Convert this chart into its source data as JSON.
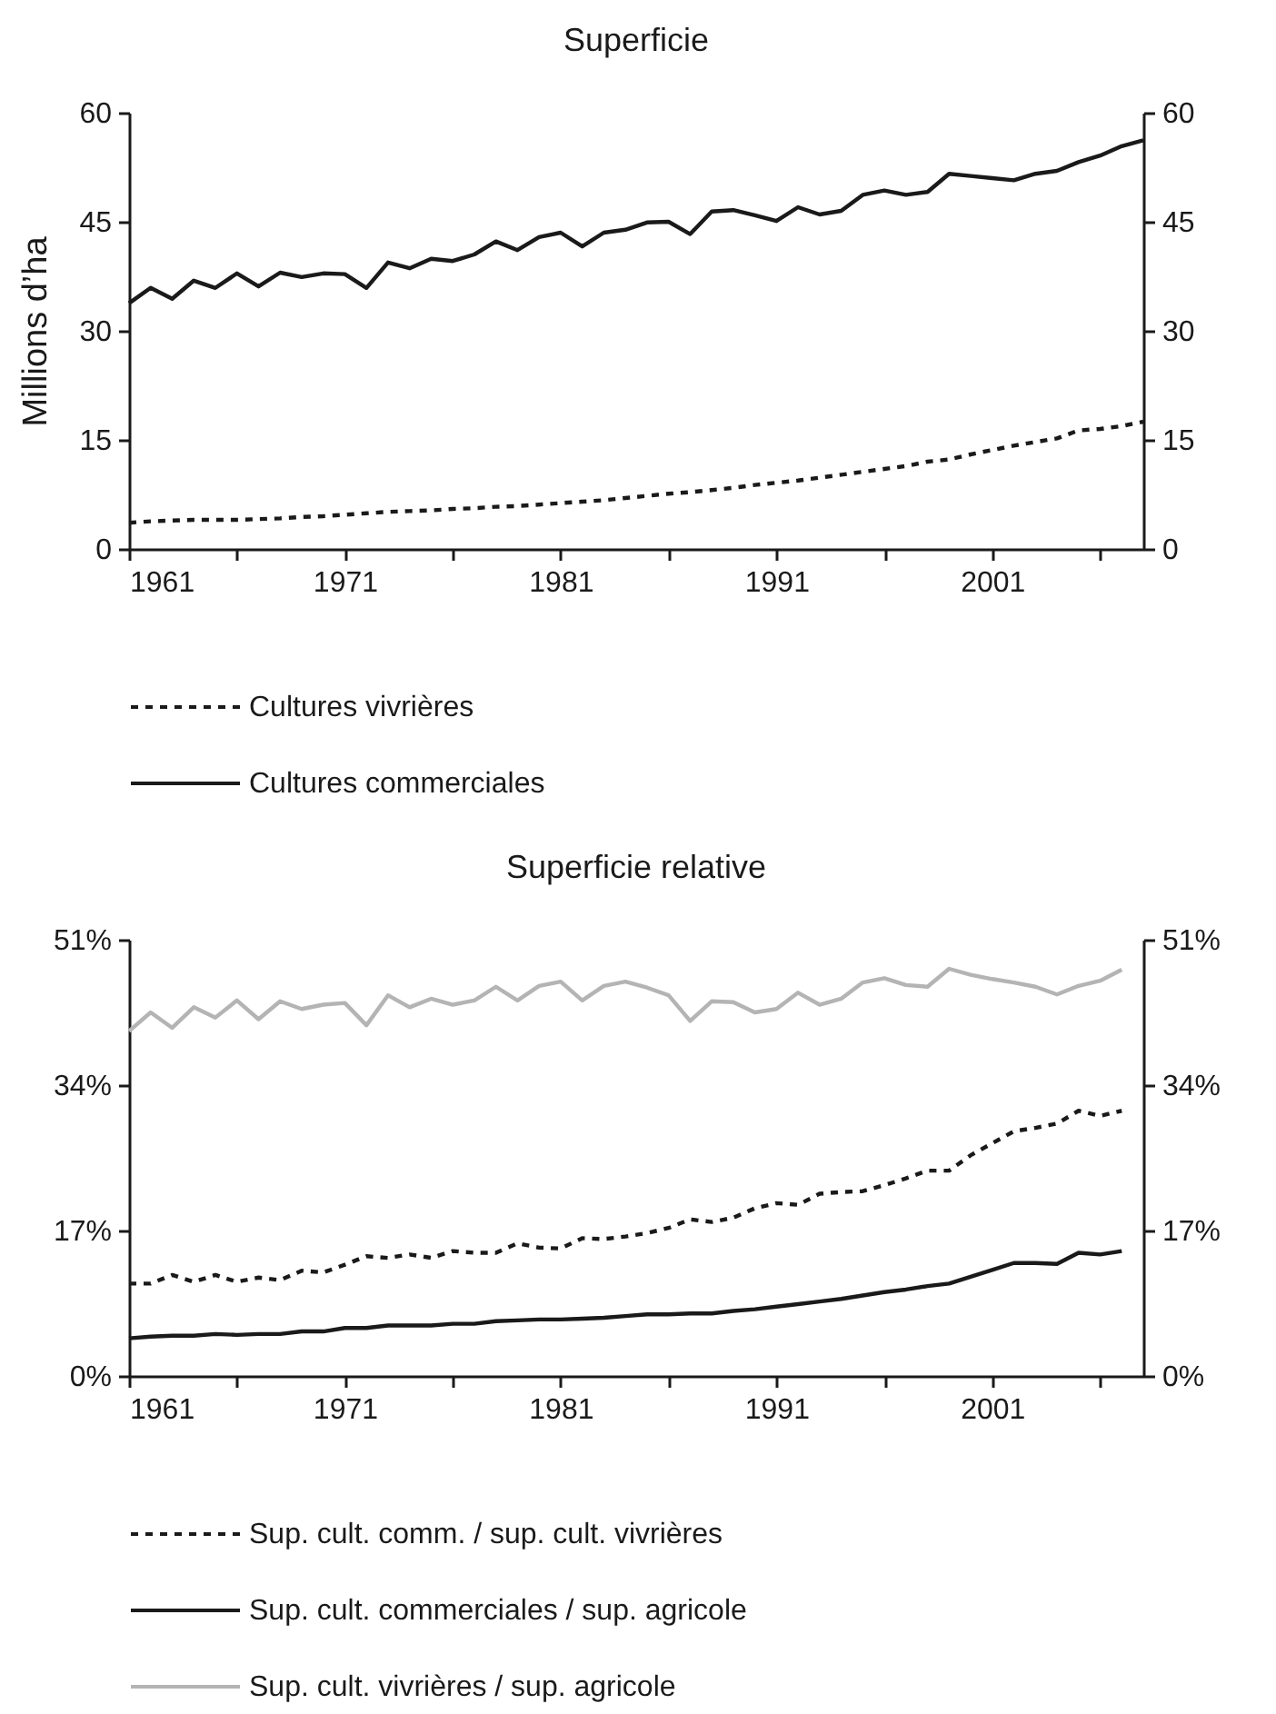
{
  "chart_data": [
    {
      "type": "line",
      "title": "Superficie",
      "ylabel": "Millions d’ha",
      "legend": "bottom",
      "xlim": [
        1961,
        2008
      ],
      "xticks": [
        1961,
        {
          "value": 1966,
          "label": null
        },
        1971,
        {
          "value": 1976,
          "label": null
        },
        1981,
        {
          "value": 1986,
          "label": null
        },
        1991,
        {
          "value": 1996,
          "label": null
        },
        2001,
        {
          "value": 2006,
          "label": null
        }
      ],
      "ylim": [
        0,
        60
      ],
      "yticks": [
        0,
        15,
        30,
        45,
        60
      ],
      "y2lim": [
        0,
        60
      ],
      "y2ticks": [
        0,
        15,
        30,
        45,
        60
      ],
      "x": [
        1961,
        1962,
        1963,
        1964,
        1965,
        1966,
        1967,
        1968,
        1969,
        1970,
        1971,
        1972,
        1973,
        1974,
        1975,
        1976,
        1977,
        1978,
        1979,
        1980,
        1981,
        1982,
        1983,
        1984,
        1985,
        1986,
        1987,
        1988,
        1989,
        1990,
        1991,
        1992,
        1993,
        1994,
        1995,
        1996,
        1997,
        1998,
        1999,
        2000,
        2001,
        2002,
        2003,
        2004,
        2005,
        2006,
        2007,
        2008
      ],
      "series": [
        {
          "name": "Cultures vivrières",
          "color": "#1a1a1a",
          "line_style": "dashed",
          "values": [
            3.6,
            3.8,
            3.9,
            4.0,
            4.0,
            4.0,
            4.1,
            4.2,
            4.4,
            4.5,
            4.7,
            4.9,
            5.1,
            5.2,
            5.3,
            5.5,
            5.6,
            5.8,
            5.9,
            6.1,
            6.3,
            6.5,
            6.7,
            7.0,
            7.3,
            7.6,
            7.8,
            8.1,
            8.4,
            8.8,
            9.1,
            9.4,
            9.8,
            10.2,
            10.6,
            11.0,
            11.4,
            12.0,
            12.3,
            13.0,
            13.6,
            14.2,
            14.7,
            15.2,
            16.3,
            16.5,
            16.9,
            17.5
          ]
        },
        {
          "name": "Cultures commerciales",
          "color": "#1a1a1a",
          "line_style": "solid",
          "values": [
            33.8,
            35.9,
            34.4,
            36.9,
            35.9,
            37.9,
            36.1,
            38.0,
            37.4,
            37.9,
            37.8,
            35.9,
            39.4,
            38.6,
            39.9,
            39.6,
            40.5,
            42.3,
            41.1,
            42.9,
            43.5,
            41.6,
            43.5,
            43.9,
            44.9,
            45.0,
            43.3,
            46.4,
            46.6,
            45.9,
            45.1,
            47.0,
            46.0,
            46.5,
            48.7,
            49.3,
            48.7,
            49.1,
            51.6,
            51.3,
            51.0,
            50.7,
            51.6,
            52.0,
            53.2,
            54.1,
            55.4,
            56.2
          ]
        }
      ]
    },
    {
      "type": "line",
      "title": "Superficie relative",
      "legend": "bottom",
      "xlim": [
        1961,
        2008
      ],
      "xticks": [
        1961,
        {
          "value": 1966,
          "label": null
        },
        1971,
        {
          "value": 1976,
          "label": null
        },
        1981,
        {
          "value": 1986,
          "label": null
        },
        1991,
        {
          "value": 1996,
          "label": null
        },
        2001,
        {
          "value": 2006,
          "label": null
        }
      ],
      "ylim": [
        0,
        51
      ],
      "yticks": [
        {
          "value": 0,
          "label": "0%"
        },
        {
          "value": 17,
          "label": "17%"
        },
        {
          "value": 34,
          "label": "34%"
        },
        {
          "value": 51,
          "label": "51%"
        }
      ],
      "y2lim": [
        0,
        51
      ],
      "y2ticks": [
        {
          "value": 0,
          "label": "0%"
        },
        {
          "value": 17,
          "label": "17%"
        },
        {
          "value": 34,
          "label": "34%"
        },
        {
          "value": 51,
          "label": "51%"
        }
      ],
      "x": [
        1961,
        1962,
        1963,
        1964,
        1965,
        1966,
        1967,
        1968,
        1969,
        1970,
        1971,
        1972,
        1973,
        1974,
        1975,
        1976,
        1977,
        1978,
        1979,
        1980,
        1981,
        1982,
        1983,
        1984,
        1985,
        1986,
        1987,
        1988,
        1989,
        1990,
        1991,
        1992,
        1993,
        1994,
        1995,
        1996,
        1997,
        1998,
        1999,
        2000,
        2001,
        2002,
        2003,
        2004,
        2005,
        2006,
        2007
      ],
      "series": [
        {
          "name": "Sup. cult. comm. / sup. cult. vivrières",
          "color": "#1a1a1a",
          "line_style": "dashed",
          "values": [
            10.8,
            10.8,
            11.8,
            11.0,
            11.8,
            11.0,
            11.5,
            11.2,
            12.3,
            12.1,
            13.0,
            14.0,
            13.8,
            14.2,
            13.8,
            14.6,
            14.4,
            14.4,
            15.5,
            15.0,
            14.9,
            16.1,
            16.0,
            16.3,
            16.7,
            17.3,
            18.3,
            18.0,
            18.5,
            19.6,
            20.2,
            20.0,
            21.3,
            21.5,
            21.6,
            22.3,
            23.1,
            24.0,
            24.0,
            25.8,
            27.2,
            28.6,
            29.0,
            29.5,
            31.0,
            30.4,
            31.0
          ]
        },
        {
          "name": "Sup. cult. commerciales / sup. agricole",
          "color": "#1a1a1a",
          "line_style": "solid",
          "values": [
            4.4,
            4.6,
            4.7,
            4.7,
            4.9,
            4.8,
            4.9,
            4.9,
            5.2,
            5.2,
            5.6,
            5.6,
            5.9,
            5.9,
            5.9,
            6.1,
            6.1,
            6.4,
            6.5,
            6.6,
            6.6,
            6.7,
            6.8,
            7.0,
            7.2,
            7.2,
            7.3,
            7.3,
            7.6,
            7.8,
            8.1,
            8.4,
            8.7,
            9.0,
            9.4,
            9.8,
            10.1,
            10.5,
            10.8,
            11.6,
            12.4,
            13.2,
            13.2,
            13.1,
            14.4,
            14.2,
            14.6
          ]
        },
        {
          "name": "Sup. cult. vivrières / sup. agricole",
          "color": "#b4b4b4",
          "line_style": "solid",
          "values": [
            40.3,
            42.5,
            40.7,
            43.1,
            41.9,
            43.9,
            41.7,
            43.8,
            42.9,
            43.4,
            43.6,
            41.0,
            44.5,
            43.1,
            44.1,
            43.4,
            43.9,
            45.5,
            43.9,
            45.6,
            46.1,
            43.9,
            45.6,
            46.1,
            45.4,
            44.5,
            41.5,
            43.8,
            43.7,
            42.5,
            42.9,
            44.8,
            43.4,
            44.1,
            46.0,
            46.5,
            45.7,
            45.5,
            47.6,
            46.9,
            46.4,
            46.0,
            45.5,
            44.6,
            45.6,
            46.2,
            47.5
          ]
        }
      ]
    }
  ]
}
